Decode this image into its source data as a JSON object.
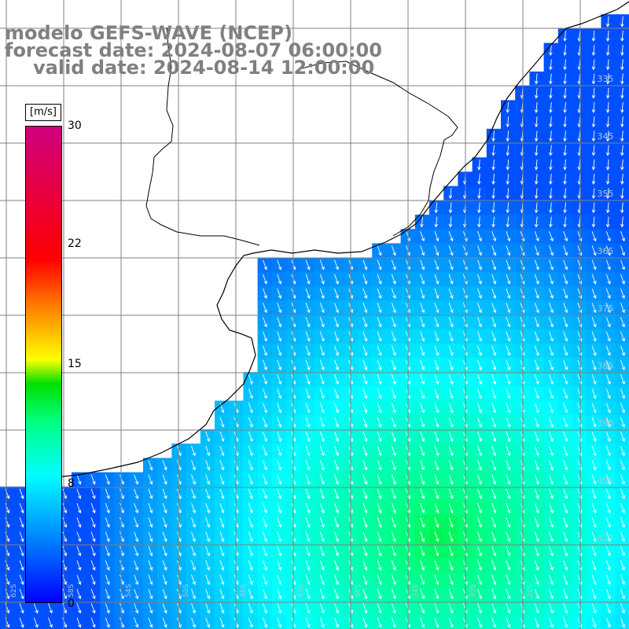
{
  "header": {
    "model": "modelo GEFS-WAVE (NCEP)",
    "forecast": "forecast date: 2024-08-07 06:00:00",
    "valid": "valid date: 2024-08-14 12:00:00"
  },
  "colorbar": {
    "unit": "[m/s]",
    "min": 0,
    "max": 30,
    "ticks": [
      "30",
      "22",
      "15",
      "8",
      "0"
    ]
  },
  "grid_labels": {
    "right": [
      "335",
      "345",
      "355",
      "365",
      "375",
      "385",
      "395",
      "405",
      "415"
    ],
    "bottom": [
      "62S",
      "58S",
      "54S",
      "50S",
      "46S",
      "42S",
      "38S",
      "34S",
      "30S",
      "26S"
    ]
  },
  "colors": {
    "land": "#ffffff",
    "coastline": "#000000",
    "gridline": "#808080",
    "arrow": "#ffffff",
    "header_text": "#808080"
  }
}
